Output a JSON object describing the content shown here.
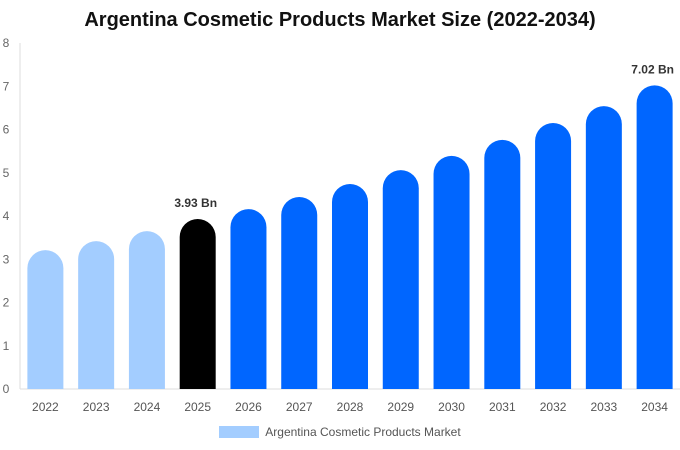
{
  "chart_data": {
    "type": "bar",
    "title": "Argentina Cosmetic Products Market Size (2022-2034)",
    "categories": [
      "2022",
      "2023",
      "2024",
      "2025",
      "2026",
      "2027",
      "2028",
      "2029",
      "2030",
      "2031",
      "2032",
      "2033",
      "2034"
    ],
    "series": [
      {
        "name": "Argentina Cosmetic Products Market",
        "values": [
          3.21,
          3.42,
          3.65,
          3.93,
          4.16,
          4.44,
          4.74,
          5.06,
          5.39,
          5.76,
          6.15,
          6.54,
          7.02
        ]
      }
    ],
    "ylim": [
      0,
      8
    ],
    "yticks": [
      0,
      1,
      2,
      3,
      4,
      5,
      6,
      7,
      8
    ],
    "grid": false,
    "legend": "bottom",
    "data_labels": [
      {
        "category": "2025",
        "text": "3.93 Bn"
      },
      {
        "category": "2034",
        "text": "7.02 Bn"
      }
    ],
    "colors": {
      "historical": "#a3cdff",
      "current": "#000000",
      "forecast": "#0066ff"
    },
    "color_groups": [
      "historical",
      "historical",
      "historical",
      "current",
      "forecast",
      "forecast",
      "forecast",
      "forecast",
      "forecast",
      "forecast",
      "forecast",
      "forecast",
      "forecast"
    ]
  }
}
